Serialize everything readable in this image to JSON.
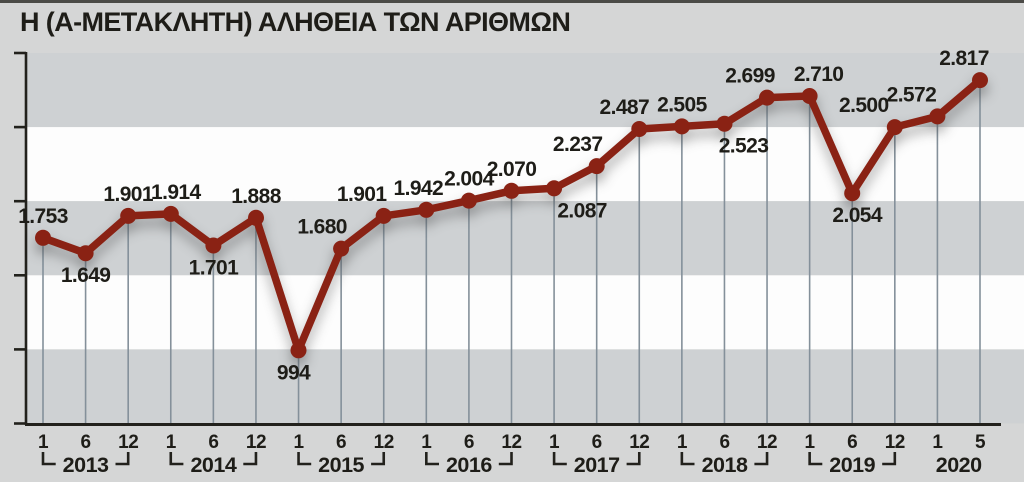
{
  "title": "Η (Α-ΜΕΤΑΚΛΗΤΗ) ΑΛΗΘΕΙΑ ΤΩΝ ΑΡΙΘΜΩΝ",
  "colors": {
    "page_bg": "#d5d6d6",
    "band_white": "#fdfdfd",
    "band_gray": "#ced1d3",
    "line": "#8a2214",
    "drop_lines": "#84909a",
    "axis": "#22211c",
    "text": "#1e1d18",
    "top_border": "#4b4b47"
  },
  "chart_data": {
    "type": "line",
    "title": "Η (Α-ΜΕΤΑΚΛΗΤΗ) ΑΛΗΘΕΙΑ ΤΩΝ ΑΡΙΘΜΩΝ",
    "xlabel": "",
    "ylabel": "",
    "ylim": [
      500,
      3000
    ],
    "ygrid_step": 500,
    "yaxis_tick_labels": "none",
    "legend": "none",
    "background_bands": "alternating gray/white horizontal bands every 500 units",
    "points": [
      {
        "year": "2013",
        "month": "1",
        "value": 1753,
        "label": "1.753",
        "label_pos": "above",
        "label_dx": 0
      },
      {
        "year": "2013",
        "month": "6",
        "value": 1649,
        "label": "1.649",
        "label_pos": "below",
        "label_dx": 0
      },
      {
        "year": "2013",
        "month": "12",
        "value": 1901,
        "label": "1.901",
        "label_pos": "above",
        "label_dx": 0
      },
      {
        "year": "2014",
        "month": "1",
        "value": 1914,
        "label": "1.914",
        "label_pos": "above",
        "label_dx": 5
      },
      {
        "year": "2014",
        "month": "6",
        "value": 1701,
        "label": "1.701",
        "label_pos": "below",
        "label_dx": 0
      },
      {
        "year": "2014",
        "month": "12",
        "value": 1888,
        "label": "1.888",
        "label_pos": "above",
        "label_dx": 0
      },
      {
        "year": "2015",
        "month": "1",
        "value": 994,
        "label": "994",
        "label_pos": "below",
        "label_dx": -5
      },
      {
        "year": "2015",
        "month": "6",
        "value": 1680,
        "label": "1.680",
        "label_pos": "above",
        "label_dx": -19
      },
      {
        "year": "2015",
        "month": "12",
        "value": 1901,
        "label": "1.901",
        "label_pos": "above",
        "label_dx": -22
      },
      {
        "year": "2016",
        "month": "1",
        "value": 1942,
        "label": "1.942",
        "label_pos": "above",
        "label_dx": -8
      },
      {
        "year": "2016",
        "month": "6",
        "value": 2004,
        "label": "2.004",
        "label_pos": "above",
        "label_dx": 0
      },
      {
        "year": "2016",
        "month": "12",
        "value": 2070,
        "label": "2.070",
        "label_pos": "above",
        "label_dx": 0
      },
      {
        "year": "2017",
        "month": "1",
        "value": 2087,
        "label": "2.087",
        "label_pos": "below",
        "label_dx": 28
      },
      {
        "year": "2017",
        "month": "6",
        "value": 2237,
        "label": "2.237",
        "label_pos": "above",
        "label_dx": -19
      },
      {
        "year": "2017",
        "month": "12",
        "value": 2487,
        "label": "2.487",
        "label_pos": "above",
        "label_dx": -15
      },
      {
        "year": "2018",
        "month": "1",
        "value": 2505,
        "label": "2.505",
        "label_pos": "above",
        "label_dx": 0
      },
      {
        "year": "2018",
        "month": "6",
        "value": 2523,
        "label": "2.523",
        "label_pos": "below",
        "label_dx": 19
      },
      {
        "year": "2018",
        "month": "12",
        "value": 2699,
        "label": "2.699",
        "label_pos": "above",
        "label_dx": -17
      },
      {
        "year": "2019",
        "month": "1",
        "value": 2710,
        "label": "2.710",
        "label_pos": "above",
        "label_dx": 9
      },
      {
        "year": "2019",
        "month": "6",
        "value": 2054,
        "label": "2.054",
        "label_pos": "below",
        "label_dx": 5
      },
      {
        "year": "2019",
        "month": "12",
        "value": 2500,
        "label": "2.500",
        "label_pos": "above",
        "label_dx": -31
      },
      {
        "year": "2020",
        "month": "1",
        "value": 2572,
        "label": "2.572",
        "label_pos": "above",
        "label_dx": -26
      },
      {
        "year": "2020",
        "month": "5",
        "value": 2817,
        "label": "2.817",
        "label_pos": "above",
        "label_dx": -16
      }
    ],
    "year_groups": [
      {
        "year": "2013",
        "bracket": true
      },
      {
        "year": "2014",
        "bracket": true
      },
      {
        "year": "2015",
        "bracket": true
      },
      {
        "year": "2016",
        "bracket": true
      },
      {
        "year": "2017",
        "bracket": true
      },
      {
        "year": "2018",
        "bracket": true
      },
      {
        "year": "2019",
        "bracket": true
      },
      {
        "year": "2020",
        "bracket": false
      }
    ]
  }
}
